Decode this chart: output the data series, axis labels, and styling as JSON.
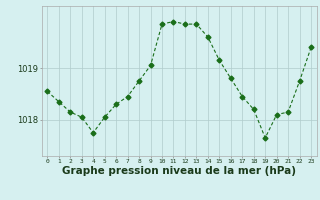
{
  "x": [
    0,
    1,
    2,
    3,
    4,
    5,
    6,
    7,
    8,
    9,
    10,
    11,
    12,
    13,
    14,
    15,
    16,
    17,
    18,
    19,
    20,
    21,
    22,
    23
  ],
  "y": [
    1018.55,
    1018.35,
    1018.15,
    1018.05,
    1017.75,
    1018.05,
    1018.3,
    1018.45,
    1018.75,
    1019.05,
    1019.85,
    1019.9,
    1019.85,
    1019.85,
    1019.6,
    1019.15,
    1018.8,
    1018.45,
    1018.2,
    1017.65,
    1018.1,
    1018.15,
    1018.75,
    1019.4
  ],
  "line_color": "#1a6e1a",
  "marker": "D",
  "marker_size": 2.5,
  "bg_color": "#d6f0f0",
  "grid_color": "#b0cccc",
  "xlabel": "Graphe pression niveau de la mer (hPa)",
  "xlabel_fontsize": 7.5,
  "ytick_labels": [
    "1018",
    "1019"
  ],
  "ytick_vals": [
    1018,
    1019
  ],
  "ylim": [
    1017.3,
    1020.2
  ],
  "xlim": [
    -0.5,
    23.5
  ],
  "xtick_labels": [
    "0",
    "1",
    "2",
    "3",
    "4",
    "5",
    "6",
    "7",
    "8",
    "9",
    "10",
    "11",
    "12",
    "13",
    "14",
    "15",
    "16",
    "17",
    "18",
    "19",
    "20",
    "21",
    "22",
    "23"
  ]
}
